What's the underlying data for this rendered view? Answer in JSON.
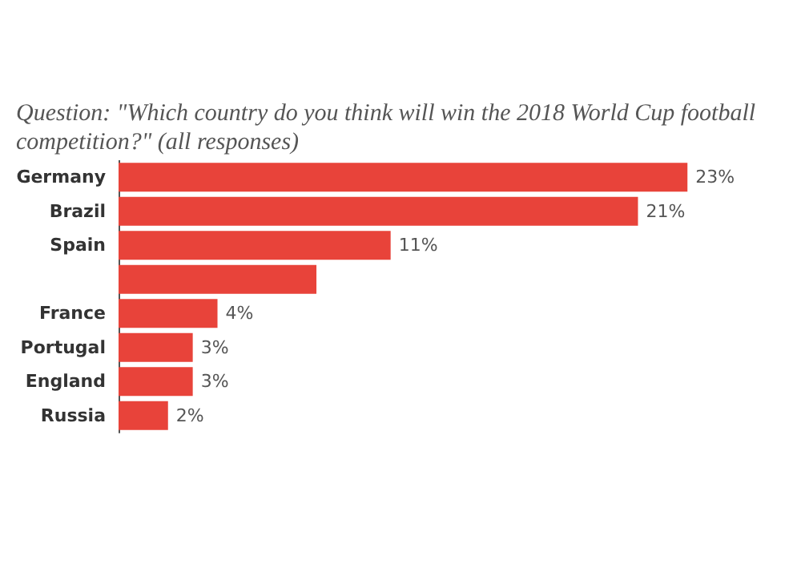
{
  "chart_data": {
    "type": "bar",
    "orientation": "horizontal",
    "title": "Question: \"Which country do you think will win the 2018 World Cup football competition?\" (all responses)",
    "categories": [
      "Germany",
      "Brazil",
      "Spain",
      null,
      "France",
      "Portugal",
      "England",
      "Russia"
    ],
    "values": [
      23,
      21,
      11,
      8,
      4,
      3,
      3,
      2
    ],
    "value_labels": [
      "23%",
      "21%",
      "11%",
      null,
      "4%",
      "3%",
      "3%",
      "2%"
    ],
    "color": "#e8433a"
  }
}
